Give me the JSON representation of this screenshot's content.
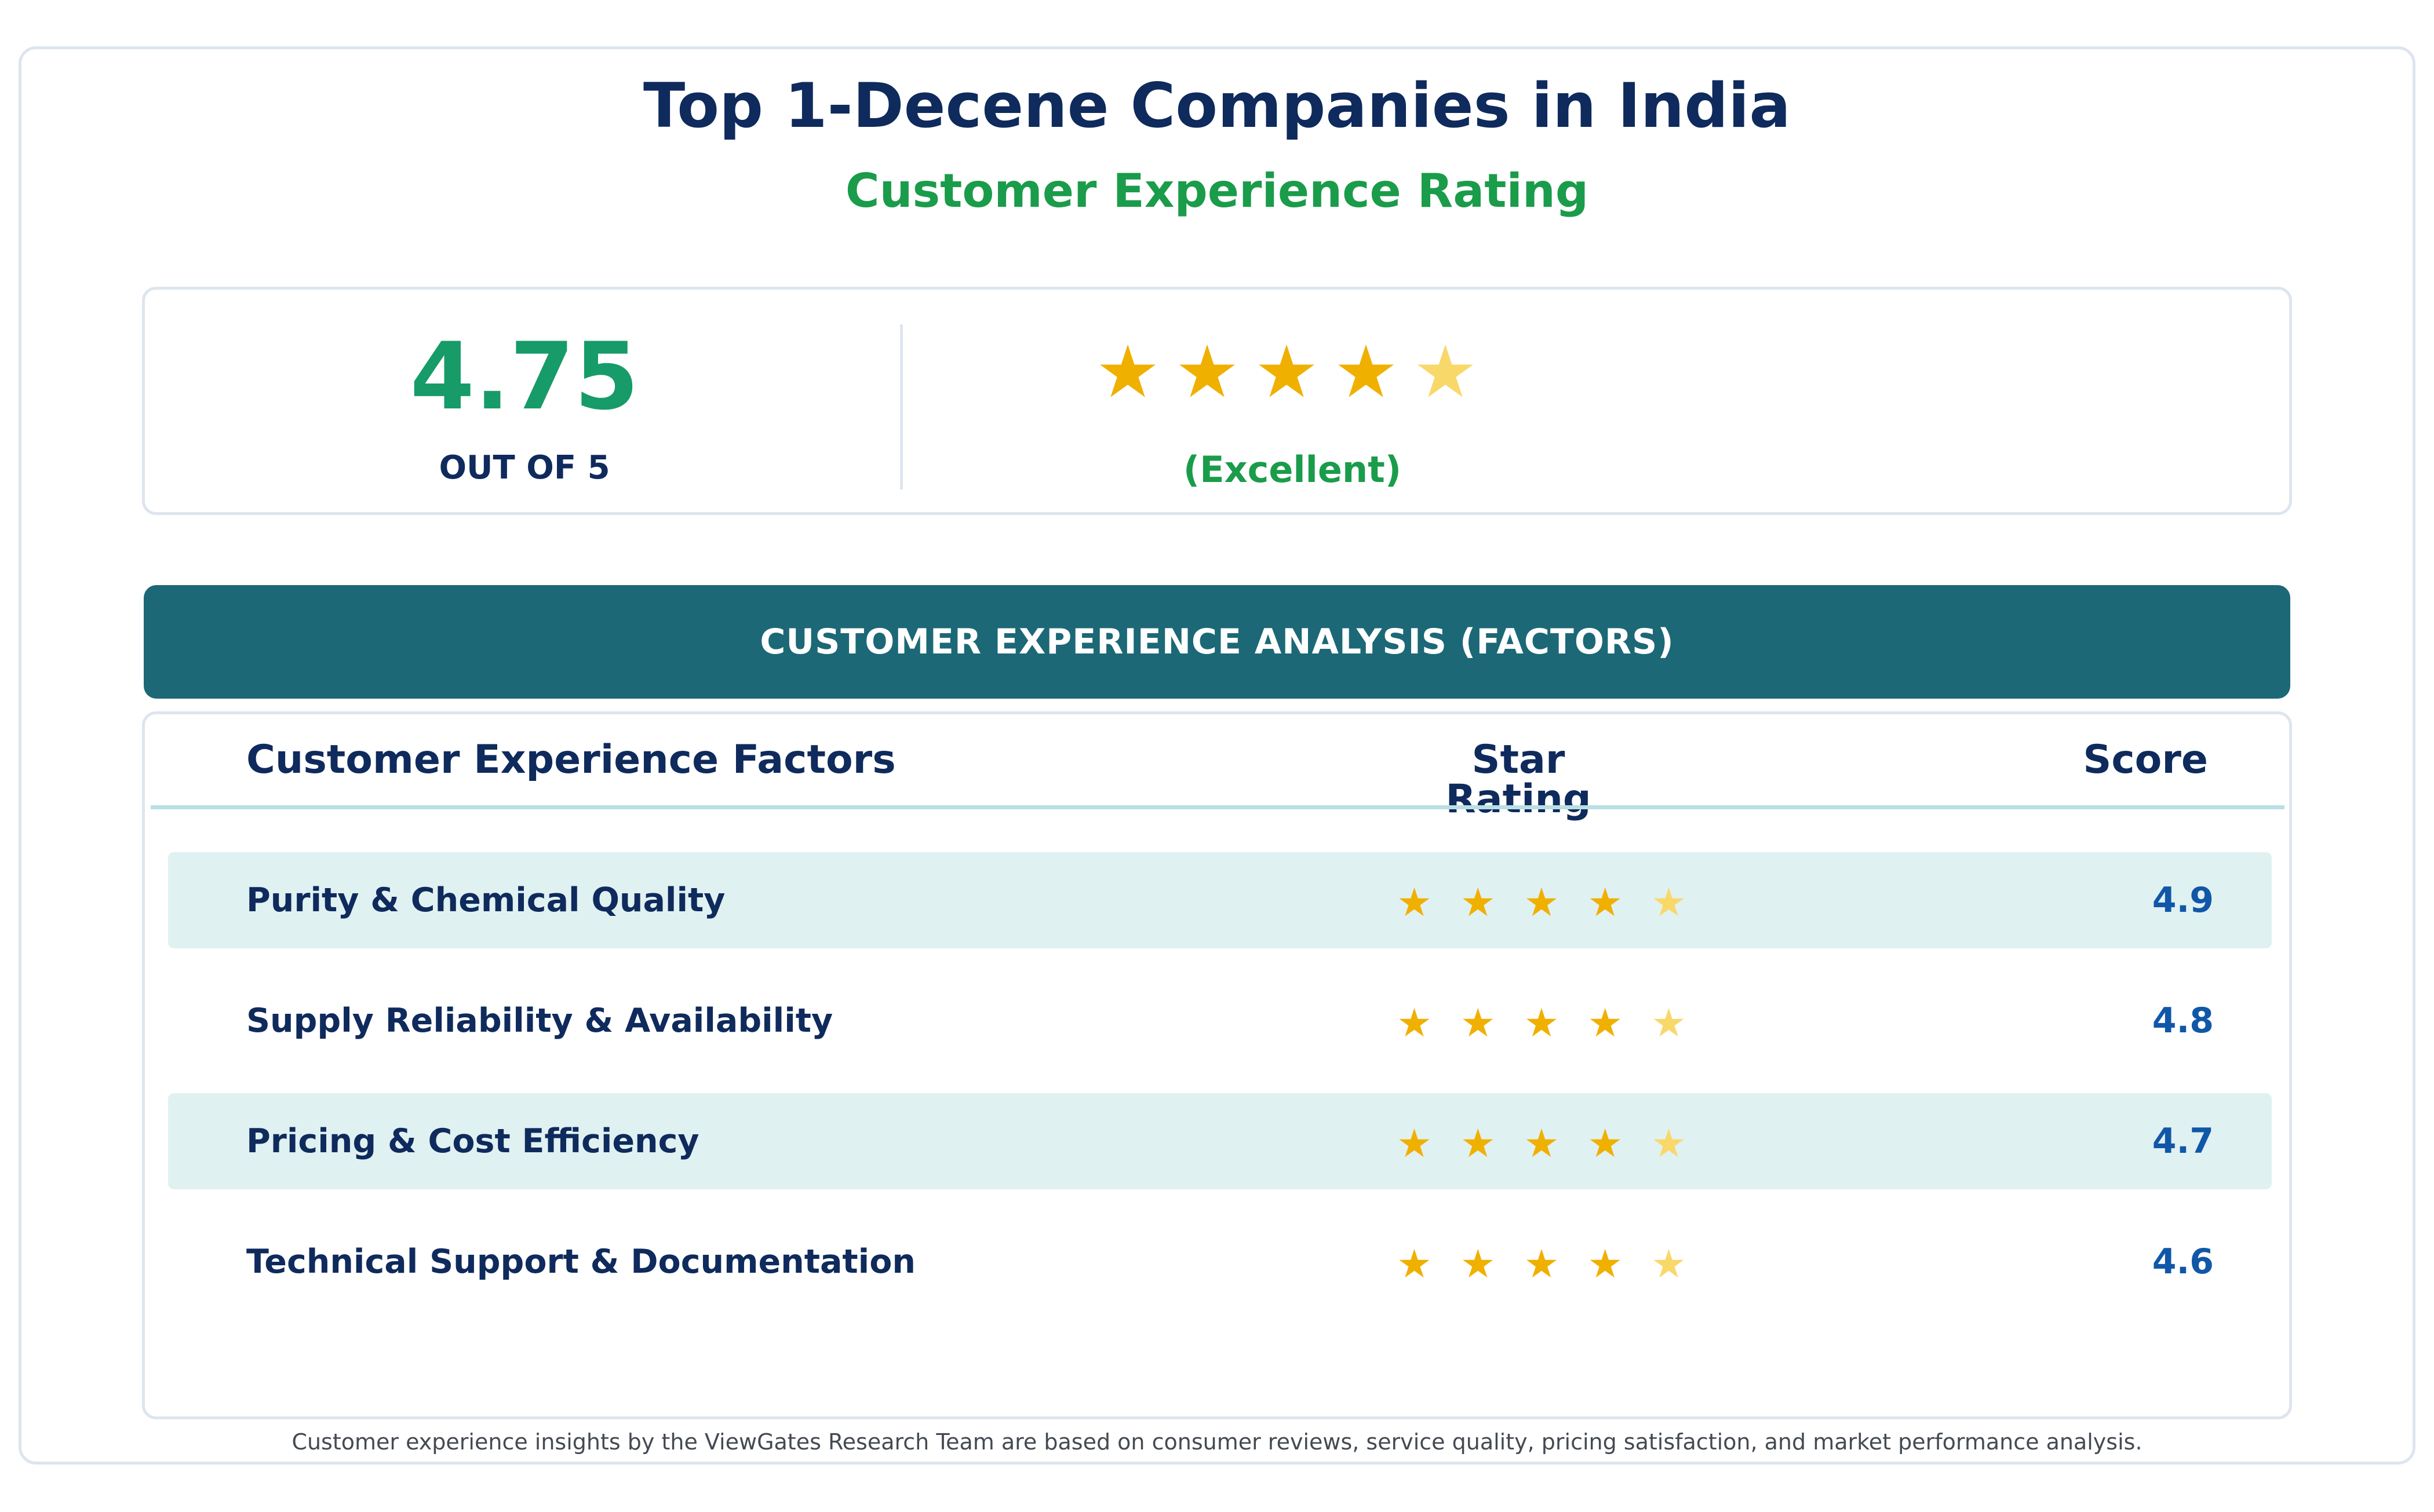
{
  "header": {
    "title": "Top 1-Decene Companies in India",
    "subtitle": "Customer Experience Rating"
  },
  "summary": {
    "score": "4.75",
    "scale_label": "OUT OF 5",
    "rating_value": 4.75,
    "verdict": "(Excellent)"
  },
  "analysis": {
    "banner": "CUSTOMER EXPERIENCE ANALYSIS (FACTORS)",
    "columns": {
      "factor": "Customer Experience Factors",
      "stars": "Star Rating",
      "score": "Score"
    },
    "rows": [
      {
        "factor": "Purity & Chemical Quality",
        "score": "4.9",
        "rating": 4.9
      },
      {
        "factor": "Supply Reliability & Availability",
        "score": "4.8",
        "rating": 4.8
      },
      {
        "factor": "Pricing & Cost Efficiency",
        "score": "4.7",
        "rating": 4.7
      },
      {
        "factor": "Technical Support & Documentation",
        "score": "4.6",
        "rating": 4.6
      }
    ]
  },
  "footer": {
    "note": "Customer experience insights by the ViewGates Research Team are based on consumer reviews, service quality, pricing satisfaction, and market performance analysis."
  },
  "colors": {
    "navy": "#0f2a5c",
    "green": "#1a9c4a",
    "score_green": "#169b69",
    "teal_banner": "#1c6876",
    "row_tint": "#e0f1f1",
    "star_full": "#f0b000",
    "star_partial": "#f9d86a",
    "score_blue": "#1157a8"
  },
  "icons": {
    "full_star": "star-icon",
    "partial_star": "half-star-icon"
  }
}
